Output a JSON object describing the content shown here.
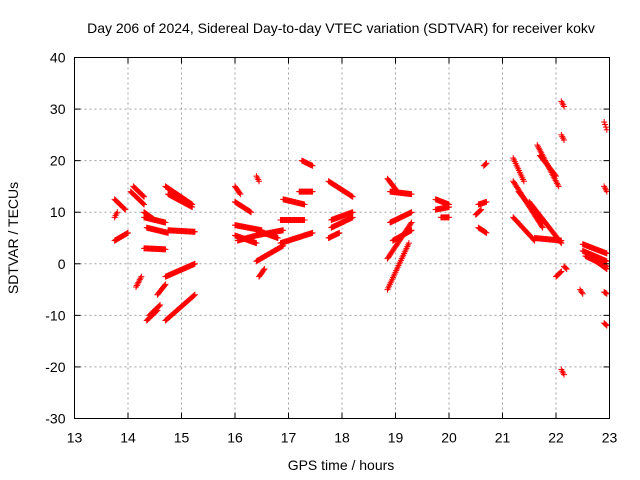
{
  "chart_data": {
    "type": "scatter",
    "title": "Day 206 of 2024, Sidereal Day-to-day VTEC variation (SDTVAR) for receiver kokv",
    "xlabel": "GPS time / hours",
    "ylabel": "SDTVAR / TECUs",
    "xlim": [
      13,
      23
    ],
    "ylim": [
      -30,
      40
    ],
    "xticks": [
      "13",
      "14",
      "15",
      "16",
      "17",
      "18",
      "19",
      "20",
      "21",
      "22",
      "23"
    ],
    "yticks": [
      "-30",
      "-20",
      "-10",
      "0",
      "10",
      "20",
      "30",
      "40"
    ],
    "grid": true,
    "marker": "plus",
    "color": "#ff0000",
    "segments": [
      [
        13.75,
        13.95,
        12.5,
        10.5
      ],
      [
        13.75,
        14.0,
        4.5,
        6.0
      ],
      [
        13.75,
        13.8,
        9.0,
        10.0
      ],
      [
        14.05,
        14.3,
        14.0,
        11.5
      ],
      [
        14.1,
        14.3,
        15.0,
        13.0
      ],
      [
        14.15,
        14.25,
        -4.5,
        -2.5
      ],
      [
        14.3,
        14.5,
        10.0,
        8.5
      ],
      [
        14.3,
        14.7,
        9.0,
        8.0
      ],
      [
        14.35,
        14.75,
        7.0,
        6.0
      ],
      [
        14.3,
        14.7,
        3.0,
        2.8
      ],
      [
        14.35,
        14.55,
        -11.0,
        -9.0
      ],
      [
        14.4,
        14.6,
        -10.0,
        -8.0
      ],
      [
        14.55,
        14.7,
        -6.0,
        -4.0
      ],
      [
        14.7,
        15.2,
        15.0,
        11.5
      ],
      [
        14.75,
        15.2,
        13.5,
        11.0
      ],
      [
        14.75,
        15.25,
        6.5,
        6.2
      ],
      [
        14.7,
        15.25,
        -2.5,
        0.0
      ],
      [
        14.7,
        15.25,
        -11.0,
        -6.0
      ],
      [
        16.0,
        16.1,
        15.0,
        13.5
      ],
      [
        16.0,
        16.3,
        12.0,
        10.0
      ],
      [
        16.0,
        16.5,
        7.5,
        6.5
      ],
      [
        16.0,
        16.4,
        5.5,
        4.0
      ],
      [
        16.05,
        16.4,
        4.5,
        5.5
      ],
      [
        16.4,
        16.45,
        17.0,
        16.0
      ],
      [
        16.4,
        16.9,
        5.5,
        6.5
      ],
      [
        16.4,
        16.8,
        6.5,
        5.0
      ],
      [
        16.45,
        16.55,
        -2.5,
        -1.0
      ],
      [
        16.4,
        16.9,
        0.5,
        3.5
      ],
      [
        16.9,
        17.3,
        12.5,
        11.5
      ],
      [
        16.85,
        17.3,
        8.5,
        8.5
      ],
      [
        16.85,
        17.45,
        4.0,
        6.0
      ],
      [
        17.2,
        17.45,
        14.0,
        14.0
      ],
      [
        17.25,
        17.45,
        20.0,
        19.0
      ],
      [
        17.75,
        18.2,
        16.0,
        13.0
      ],
      [
        17.8,
        18.2,
        8.5,
        10.0
      ],
      [
        17.8,
        18.2,
        7.0,
        9.0
      ],
      [
        17.75,
        17.95,
        5.0,
        6.0
      ],
      [
        18.85,
        19.0,
        16.5,
        14.5
      ],
      [
        18.9,
        19.3,
        14.0,
        13.5
      ],
      [
        18.9,
        19.3,
        8.0,
        10.0
      ],
      [
        18.85,
        19.3,
        1.0,
        8.0
      ],
      [
        18.85,
        19.25,
        -5.0,
        4.0
      ],
      [
        18.95,
        19.3,
        4.5,
        6.5
      ],
      [
        19.75,
        20.0,
        12.5,
        11.5
      ],
      [
        19.75,
        20.0,
        10.5,
        11.0
      ],
      [
        19.85,
        20.0,
        9.0,
        9.0
      ],
      [
        20.55,
        20.7,
        11.5,
        12.0
      ],
      [
        20.55,
        20.7,
        7.0,
        6.0
      ],
      [
        20.65,
        20.7,
        19.0,
        19.5
      ],
      [
        20.5,
        20.6,
        9.5,
        10.5
      ],
      [
        21.2,
        21.4,
        20.5,
        16.0
      ],
      [
        21.2,
        21.75,
        16.0,
        7.0
      ],
      [
        21.3,
        21.75,
        14.0,
        8.0
      ],
      [
        21.2,
        21.6,
        9.0,
        4.5
      ],
      [
        21.5,
        22.1,
        12.0,
        4.0
      ],
      [
        21.6,
        22.1,
        5.0,
        4.5
      ],
      [
        21.65,
        22.05,
        23.0,
        15.0
      ],
      [
        21.7,
        22.0,
        21.0,
        17.0
      ],
      [
        22.0,
        22.1,
        -2.5,
        -1.5
      ],
      [
        22.1,
        22.15,
        31.5,
        30.5
      ],
      [
        22.1,
        22.15,
        25.0,
        24.0
      ],
      [
        22.1,
        22.15,
        -20.5,
        -21.5
      ],
      [
        22.45,
        22.5,
        -5.0,
        -5.8
      ],
      [
        22.5,
        22.95,
        3.8,
        2.0
      ],
      [
        22.5,
        22.95,
        2.5,
        0.5
      ],
      [
        22.55,
        22.95,
        1.5,
        -0.5
      ],
      [
        22.75,
        22.95,
        0.5,
        -1.0
      ],
      [
        22.9,
        22.95,
        27.5,
        26.0
      ],
      [
        22.9,
        22.95,
        15.0,
        14.0
      ],
      [
        22.9,
        22.95,
        -5.5,
        -5.8
      ],
      [
        22.9,
        22.95,
        -11.5,
        -12.0
      ],
      [
        22.15,
        22.2,
        -0.5,
        -1.0
      ]
    ]
  }
}
